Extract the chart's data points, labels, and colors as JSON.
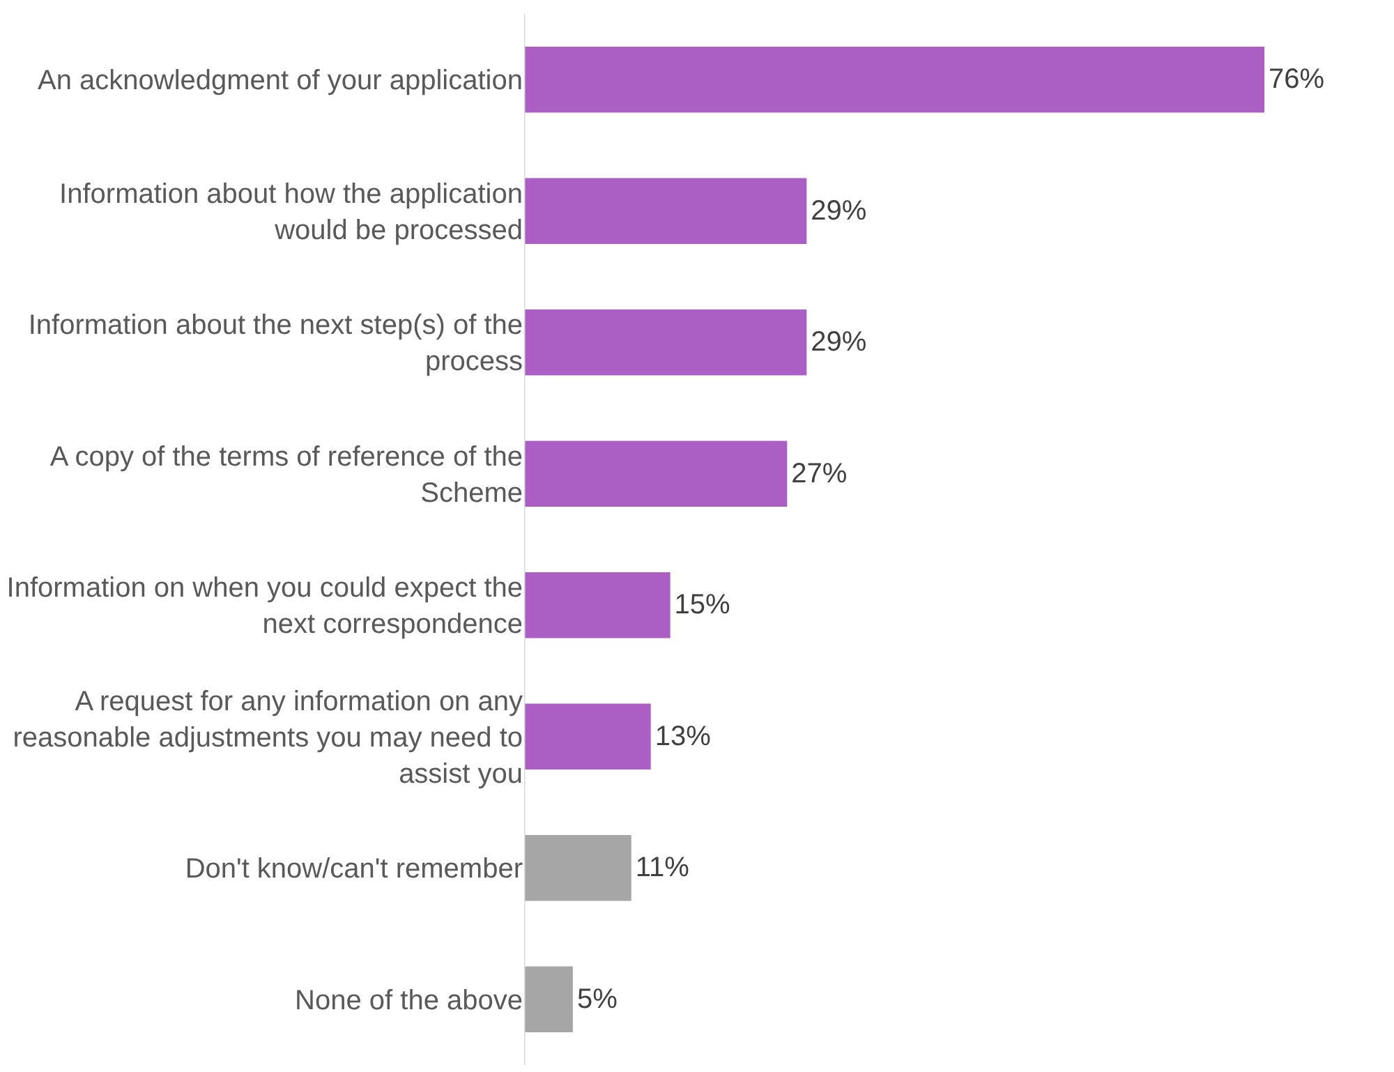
{
  "chart_data": {
    "type": "bar",
    "orientation": "horizontal",
    "categories": [
      "An acknowledgment of your application",
      "Information about how the application would be processed",
      "Information about the next step(s) of the process",
      "A copy of the terms of reference of the Scheme",
      "Information on when you could expect the next correspondence",
      "A request for any information on any reasonable adjustments you may need to assist you",
      "Don't know/can't remember",
      "None of the above"
    ],
    "values": [
      76,
      29,
      29,
      27,
      15,
      13,
      11,
      5
    ],
    "colors": [
      "#ab5fc4",
      "#ab5fc4",
      "#ab5fc4",
      "#ab5fc4",
      "#ab5fc4",
      "#ab5fc4",
      "#a6a6a6",
      "#a6a6a6"
    ],
    "value_labels": [
      "76%",
      "29%",
      "29%",
      "27%",
      "15%",
      "13%",
      "11%",
      "5%"
    ],
    "tick_labels": "y"
  }
}
